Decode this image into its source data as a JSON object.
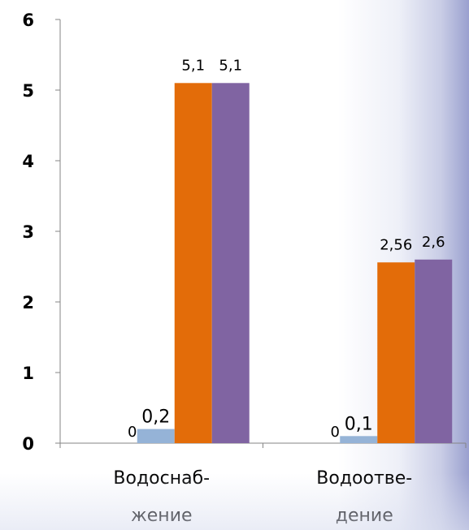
{
  "chart_data": {
    "type": "bar",
    "title": "",
    "xlabel": "",
    "ylabel": "",
    "ylim": [
      0,
      6
    ],
    "yticks": [
      "0",
      "1",
      "2",
      "3",
      "4",
      "5",
      "6"
    ],
    "categories": [
      {
        "lines": [
          "Водоснаб-",
          "жение"
        ]
      },
      {
        "lines": [
          "Водоотве-",
          "дение"
        ]
      }
    ],
    "legend": "none",
    "grid": false,
    "series": [
      {
        "color": "#4472c4",
        "values": [
          0,
          0
        ],
        "labels": [
          "0",
          "0"
        ]
      },
      {
        "color": "#95b3d7",
        "values": [
          0.2,
          0.1
        ],
        "labels": [
          "0,2",
          "0,1"
        ]
      },
      {
        "color": "#e36c09",
        "values": [
          5.1,
          2.56
        ],
        "labels": [
          "5,1",
          "2,56"
        ]
      },
      {
        "color": "#8064a2",
        "values": [
          5.1,
          2.6
        ],
        "labels": [
          "5,1",
          "2,6"
        ]
      }
    ]
  }
}
